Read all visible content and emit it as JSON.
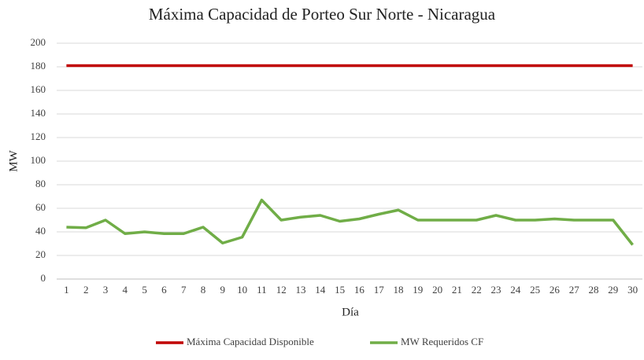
{
  "chart_data": {
    "type": "line",
    "title": "Máxima Capacidad  de Porteo Sur Norte - Nicaragua",
    "x_label": "Día",
    "y_label": "MW",
    "categories": [
      1,
      2,
      3,
      4,
      5,
      6,
      7,
      8,
      9,
      10,
      11,
      12,
      13,
      14,
      15,
      16,
      17,
      18,
      19,
      20,
      21,
      22,
      23,
      24,
      25,
      26,
      27,
      28,
      29,
      30
    ],
    "series": [
      {
        "name": "Máxima Capacidad Disponible",
        "color": "#c00000",
        "values": [
          181,
          181,
          181,
          181,
          181,
          181,
          181,
          181,
          181,
          181,
          181,
          181,
          181,
          181,
          181,
          181,
          181,
          181,
          181,
          181,
          181,
          181,
          181,
          181,
          181,
          181,
          181,
          181,
          181,
          181
        ]
      },
      {
        "name": "MW Requeridos CF",
        "color": "#70ad47",
        "values": [
          44,
          43.5,
          50,
          38.5,
          40,
          38.5,
          38.5,
          44,
          30.5,
          35.5,
          67,
          50,
          52.5,
          54,
          49,
          51,
          55,
          58.5,
          50,
          50,
          50,
          50,
          54,
          50,
          50,
          51,
          50,
          50,
          50,
          29
        ]
      }
    ],
    "ylim": [
      0,
      200
    ],
    "yticks": [
      0,
      20,
      40,
      60,
      80,
      100,
      120,
      140,
      160,
      180,
      200
    ],
    "grid": true,
    "legend": "bottom"
  }
}
